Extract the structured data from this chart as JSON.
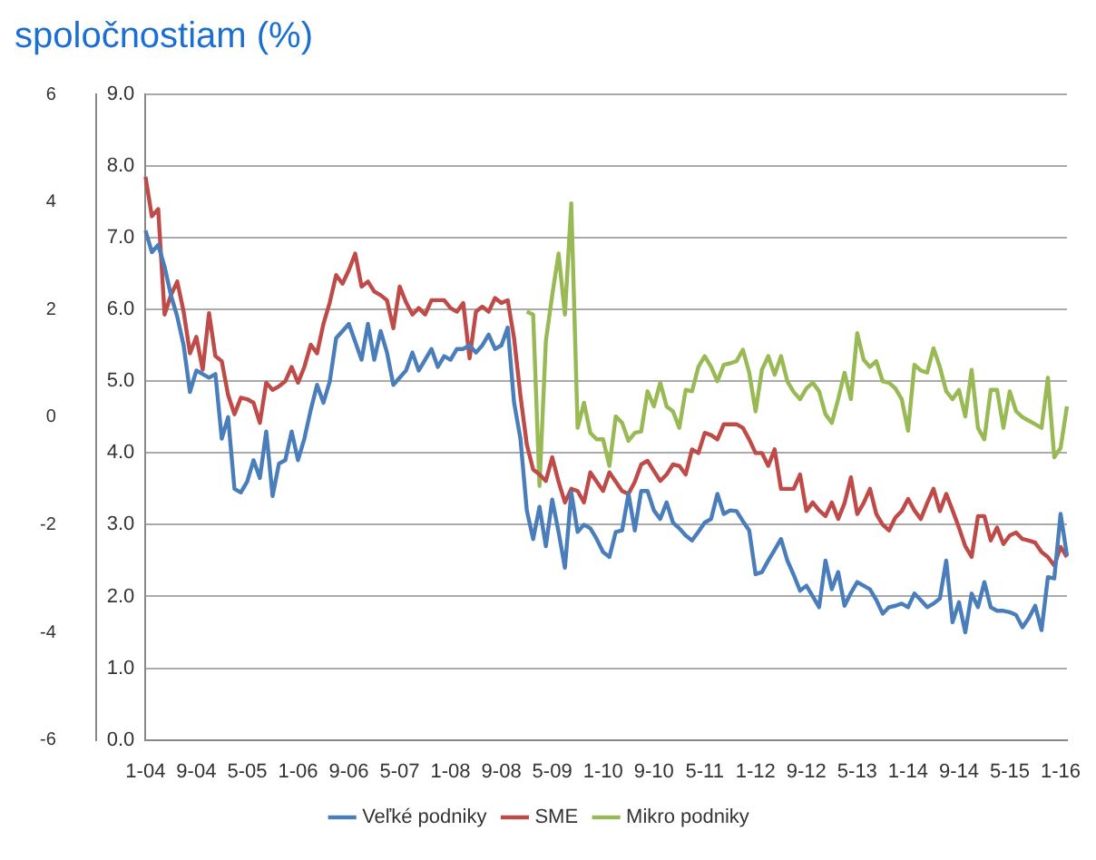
{
  "chart_data": {
    "type": "line",
    "title": "spoločnostiam (%)",
    "categories": [
      "1-04",
      null,
      null,
      null,
      null,
      null,
      null,
      null,
      "9-04",
      null,
      null,
      null,
      null,
      null,
      null,
      null,
      "5-05",
      null,
      null,
      null,
      null,
      null,
      null,
      null,
      "1-06",
      null,
      null,
      null,
      null,
      null,
      null,
      null,
      "9-06",
      null,
      null,
      null,
      null,
      null,
      null,
      null,
      "5-07",
      null,
      null,
      null,
      null,
      null,
      null,
      null,
      "1-08",
      null,
      null,
      null,
      null,
      null,
      null,
      null,
      "9-08",
      null,
      null,
      null,
      null,
      null,
      null,
      null,
      "5-09",
      null,
      null,
      null,
      null,
      null,
      null,
      null,
      "1-10",
      null,
      null,
      null,
      null,
      null,
      null,
      null,
      "9-10",
      null,
      null,
      null,
      null,
      null,
      null,
      null,
      "5-11",
      null,
      null,
      null,
      null,
      null,
      null,
      null,
      "1-12",
      null,
      null,
      null,
      null,
      null,
      null,
      null,
      "9-12",
      null,
      null,
      null,
      null,
      null,
      null,
      null,
      "5-13",
      null,
      null,
      null,
      null,
      null,
      null,
      null,
      "1-14",
      null,
      null,
      null,
      null,
      null,
      null,
      null,
      "9-14",
      null,
      null,
      null,
      null,
      null,
      null,
      null,
      "5-15",
      null,
      null,
      null,
      null,
      null,
      null,
      null,
      "1-16",
      null
    ],
    "series": [
      {
        "name": "Veľké podniky",
        "color": "#4a7ebb",
        "values": [
          7.1,
          6.8,
          6.9,
          6.6,
          6.2,
          5.9,
          5.5,
          4.85,
          5.15,
          5.1,
          5.05,
          5.1,
          4.2,
          4.5,
          3.5,
          3.45,
          3.6,
          3.9,
          3.65,
          4.3,
          3.4,
          3.85,
          3.9,
          4.3,
          3.9,
          4.2,
          4.6,
          4.95,
          4.7,
          5.0,
          5.6,
          5.7,
          5.8,
          5.55,
          5.3,
          5.8,
          5.3,
          5.7,
          5.4,
          4.95,
          5.05,
          5.15,
          5.4,
          5.15,
          5.3,
          5.45,
          5.2,
          5.35,
          5.3,
          5.45,
          5.45,
          5.5,
          5.4,
          5.5,
          5.65,
          5.45,
          5.5,
          5.75,
          4.7,
          4.2,
          3.2,
          2.8,
          3.25,
          2.7,
          3.35,
          2.9,
          2.4,
          3.45,
          2.9,
          3.0,
          2.95,
          2.8,
          2.62,
          2.55,
          2.9,
          2.92,
          3.43,
          2.92,
          3.47,
          3.47,
          3.2,
          3.08,
          3.31,
          3.03,
          2.95,
          2.85,
          2.78,
          2.9,
          3.03,
          3.08,
          3.43,
          3.15,
          3.2,
          3.19,
          3.05,
          2.92,
          2.31,
          2.34,
          2.5,
          2.65,
          2.8,
          2.5,
          2.3,
          2.08,
          2.15,
          2.0,
          1.85,
          2.5,
          2.1,
          2.34,
          1.87,
          2.05,
          2.2,
          2.15,
          2.1,
          1.95,
          1.76,
          1.85,
          1.87,
          1.9,
          1.85,
          2.04,
          1.95,
          1.85,
          1.9,
          1.97,
          2.5,
          1.64,
          1.92,
          1.5,
          2.04,
          1.85,
          2.2,
          1.85,
          1.8,
          1.8,
          1.78,
          1.74,
          1.57,
          1.7,
          1.87,
          1.53,
          2.27,
          2.25,
          3.15,
          2.57
        ]
      },
      {
        "name": "SME",
        "color": "#be4b48",
        "values": [
          7.85,
          7.3,
          7.4,
          5.93,
          6.2,
          6.39,
          5.97,
          5.39,
          5.62,
          5.16,
          5.95,
          5.35,
          5.28,
          4.81,
          4.54,
          4.77,
          4.75,
          4.7,
          4.42,
          4.98,
          4.88,
          4.93,
          5.0,
          5.2,
          4.98,
          5.2,
          5.51,
          5.39,
          5.8,
          6.1,
          6.48,
          6.36,
          6.55,
          6.78,
          6.32,
          6.39,
          6.25,
          6.2,
          6.13,
          5.74,
          6.32,
          6.1,
          5.93,
          6.02,
          5.93,
          6.13,
          6.13,
          6.13,
          6.02,
          5.97,
          6.09,
          5.32,
          5.97,
          6.04,
          5.97,
          6.16,
          6.09,
          6.13,
          5.6,
          4.8,
          4.12,
          3.77,
          3.7,
          3.61,
          3.94,
          3.6,
          3.31,
          3.5,
          3.47,
          3.31,
          3.73,
          3.6,
          3.47,
          3.73,
          3.6,
          3.47,
          3.43,
          3.6,
          3.84,
          3.89,
          3.75,
          3.61,
          3.7,
          3.84,
          3.82,
          3.7,
          4.05,
          4.0,
          4.28,
          4.25,
          4.19,
          4.4,
          4.4,
          4.4,
          4.35,
          4.19,
          4.0,
          4.0,
          3.82,
          4.05,
          3.5,
          3.5,
          3.5,
          3.7,
          3.19,
          3.31,
          3.2,
          3.12,
          3.31,
          3.08,
          3.3,
          3.66,
          3.15,
          3.3,
          3.5,
          3.15,
          3.0,
          2.92,
          3.1,
          3.19,
          3.36,
          3.2,
          3.08,
          3.3,
          3.5,
          3.19,
          3.43,
          3.2,
          2.96,
          2.7,
          2.55,
          3.12,
          3.12,
          2.78,
          2.96,
          2.73,
          2.85,
          2.89,
          2.8,
          2.78,
          2.75,
          2.62,
          2.55,
          2.43,
          2.69,
          2.55
        ]
      },
      {
        "name": "Mikro podniky",
        "color": "#98b954",
        "values": [
          null,
          null,
          null,
          null,
          null,
          null,
          null,
          null,
          null,
          null,
          null,
          null,
          null,
          null,
          null,
          null,
          null,
          null,
          null,
          null,
          null,
          null,
          null,
          null,
          null,
          null,
          null,
          null,
          null,
          null,
          null,
          null,
          null,
          null,
          null,
          null,
          null,
          null,
          null,
          null,
          null,
          null,
          null,
          null,
          null,
          null,
          null,
          null,
          null,
          null,
          null,
          null,
          null,
          null,
          null,
          null,
          null,
          null,
          null,
          null,
          5.97,
          5.93,
          3.54,
          5.56,
          6.2,
          6.78,
          5.93,
          7.48,
          4.35,
          4.7,
          4.28,
          4.19,
          4.19,
          3.82,
          4.51,
          4.42,
          4.17,
          4.28,
          4.3,
          4.86,
          4.65,
          4.98,
          4.65,
          4.58,
          4.35,
          4.88,
          4.86,
          5.2,
          5.35,
          5.2,
          5.0,
          5.23,
          5.25,
          5.28,
          5.44,
          5.12,
          4.58,
          5.16,
          5.35,
          5.09,
          5.35,
          5.0,
          4.85,
          4.75,
          4.9,
          4.98,
          4.86,
          4.54,
          4.42,
          4.75,
          5.12,
          4.75,
          5.67,
          5.3,
          5.2,
          5.28,
          5.0,
          4.98,
          4.9,
          4.75,
          4.31,
          5.23,
          5.15,
          5.12,
          5.46,
          5.2,
          4.86,
          4.75,
          4.88,
          4.51,
          5.16,
          4.35,
          4.19,
          4.88,
          4.88,
          4.35,
          4.86,
          4.58,
          4.5,
          4.45,
          4.4,
          4.35,
          5.05,
          3.94,
          4.07,
          4.65
        ]
      }
    ],
    "ylim": [
      0,
      9
    ],
    "yticks": [
      {
        "value": 0,
        "label": "0.0"
      },
      {
        "value": 1,
        "label": "1.0"
      },
      {
        "value": 2,
        "label": "2.0"
      },
      {
        "value": 3,
        "label": "3.0"
      },
      {
        "value": 4,
        "label": "4.0"
      },
      {
        "value": 5,
        "label": "5.0"
      },
      {
        "value": 6,
        "label": "6.0"
      },
      {
        "value": 7,
        "label": "7.0"
      },
      {
        "value": 8,
        "label": "8.0"
      },
      {
        "value": 9,
        "label": "9.0"
      }
    ],
    "y2lim": [
      -6,
      6
    ],
    "y2ticks": [
      -6,
      -4,
      -2,
      0,
      2,
      4,
      6
    ],
    "grid": "y",
    "legend": "bottom",
    "marker": "none",
    "line_style": "solid"
  }
}
